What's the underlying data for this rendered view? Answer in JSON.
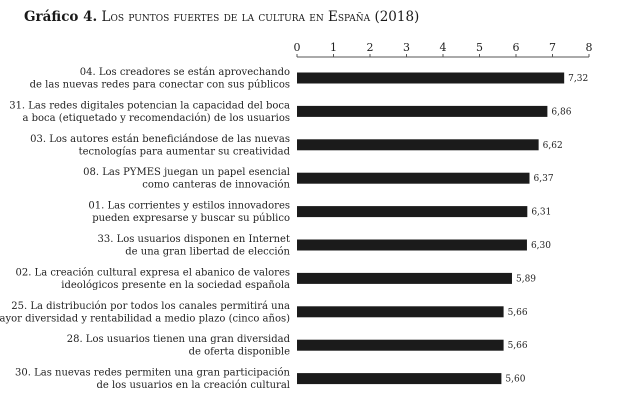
{
  "title": {
    "lead": "Gráfico 4.",
    "text": "Los puntos fuertes de la cultura en España (2018)"
  },
  "chart_data": {
    "type": "bar",
    "orientation": "horizontal",
    "title": "Gráfico 4. Los puntos fuertes de la cultura en España (2018)",
    "xlim": [
      0,
      8
    ],
    "ticks": [
      0,
      1,
      2,
      3,
      4,
      5,
      6,
      7,
      8
    ],
    "tick_labels": [
      "0",
      "1",
      "2",
      "3",
      "4",
      "5",
      "6",
      "7",
      "8"
    ],
    "axis_position": "top",
    "grid": false,
    "categories": [
      [
        "04. Los creadores se están aprovechando",
        "de las nuevas redes para conectar con sus públicos"
      ],
      [
        "31. Las redes digitales potencian la capacidad del boca",
        "a boca (etiquetado y recomendación) de los usuarios"
      ],
      [
        "03. Los autores están beneficiándose de las nuevas",
        "tecnologías para aumentar su creatividad"
      ],
      [
        "08. Las PYMES juegan un papel esencial",
        "como canteras de innovación"
      ],
      [
        "01. Las corrientes y estilos innovadores",
        "pueden expresarse y buscar su público"
      ],
      [
        "33. Los usuarios disponen en Internet",
        "de una gran libertad de elección"
      ],
      [
        "02. La creación cultural expresa el abanico de valores",
        "ideológicos presente en la sociedad española"
      ],
      [
        "25. La distribución por todos los canales permitirá una",
        "mayor diversidad y rentabilidad a medio plazo (cinco años)"
      ],
      [
        "28. Los usuarios tienen una gran diversidad",
        "de oferta disponible"
      ],
      [
        "30. Las nuevas redes permiten una gran participación",
        "de los usuarios en la creación cultural"
      ]
    ],
    "values": [
      7.32,
      6.86,
      6.62,
      6.37,
      6.31,
      6.3,
      5.89,
      5.66,
      5.66,
      5.6
    ],
    "value_labels": [
      "7,32",
      "6,86",
      "6,62",
      "6,37",
      "6,31",
      "6,30",
      "5,89",
      "5,66",
      "5,66",
      "5,60"
    ],
    "bar_color": "#1b1b1b"
  }
}
